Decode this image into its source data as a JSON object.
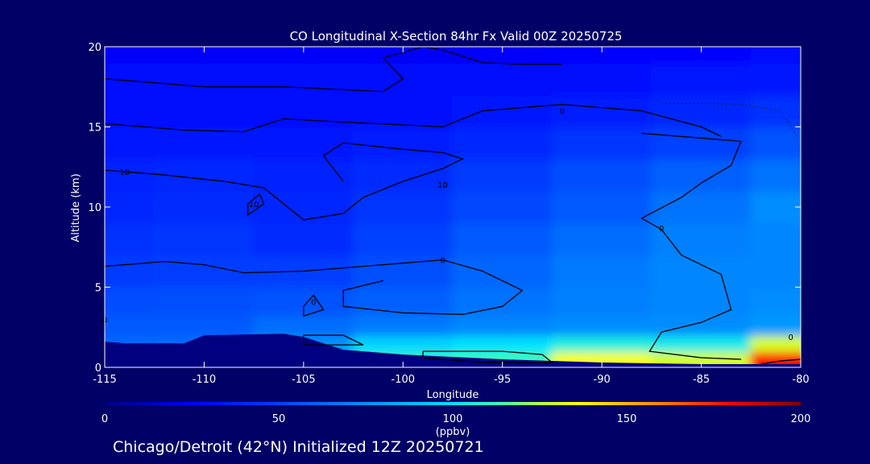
{
  "colors": {
    "background": "#000066",
    "text": "#ffffff",
    "contour": "#000000",
    "terrain": "#000080"
  },
  "colorbar": {
    "min": 0,
    "max": 200,
    "ticks": [
      "0",
      "50",
      "100",
      "150",
      "200"
    ],
    "tick_values": [
      0,
      50,
      100,
      150,
      200
    ],
    "unit_label": "(ppbv)"
  },
  "footer": {
    "caption": "Chicago/Detroit (42°N) Initialized 12Z 20250721"
  },
  "chart_data": {
    "type": "heatmap",
    "title": "CO Longitudinal X-Section 84hr  Fx Valid 00Z 20250725",
    "xlabel": "Longitude",
    "ylabel": "Altitude (km)",
    "xlim": [
      -115,
      -80
    ],
    "ylim": [
      0,
      20
    ],
    "xticks": [
      "-115",
      "-110",
      "-105",
      "-100",
      "-95",
      "-90",
      "-85",
      "-80"
    ],
    "xtick_values": [
      -115,
      -110,
      -105,
      -100,
      -95,
      -90,
      -85,
      -80
    ],
    "yticks": [
      "0",
      "5",
      "10",
      "15",
      "20"
    ],
    "ytick_values": [
      0,
      5,
      10,
      15,
      20
    ],
    "field": {
      "longitudes": [
        -115,
        -110,
        -105,
        -100,
        -95,
        -90,
        -85,
        -80
      ],
      "altitudes": [
        0.5,
        1.5,
        2.5,
        4,
        6,
        8,
        10,
        12,
        14,
        16,
        18,
        20
      ],
      "co_ppbv": [
        [
          70,
          70,
          95,
          110,
          112,
          135,
          130,
          180
        ],
        [
          62,
          63,
          75,
          96,
          100,
          106,
          104,
          130
        ],
        [
          58,
          58,
          64,
          68,
          72,
          74,
          74,
          78
        ],
        [
          54,
          55,
          56,
          60,
          66,
          70,
          72,
          74
        ],
        [
          48,
          49,
          49,
          55,
          62,
          68,
          72,
          72
        ],
        [
          44,
          46,
          42,
          50,
          58,
          64,
          70,
          72
        ],
        [
          40,
          42,
          40,
          46,
          52,
          58,
          66,
          74
        ],
        [
          38,
          40,
          38,
          42,
          48,
          54,
          60,
          66
        ],
        [
          34,
          34,
          32,
          36,
          40,
          46,
          50,
          56
        ],
        [
          30,
          30,
          30,
          30,
          32,
          36,
          40,
          44
        ],
        [
          28,
          28,
          28,
          28,
          28,
          30,
          32,
          34
        ],
        [
          24,
          24,
          24,
          24,
          24,
          26,
          26,
          28
        ]
      ]
    },
    "terrain_km": {
      "longitudes": [
        -115,
        -114,
        -111,
        -110,
        -106,
        -105,
        -103,
        -100,
        -95,
        -90,
        -85,
        -80
      ],
      "heights": [
        1.6,
        1.5,
        1.5,
        2.0,
        2.1,
        1.9,
        1.1,
        0.8,
        0.5,
        0.3,
        0.2,
        0.2
      ]
    },
    "contour_labels": [
      {
        "text": "0",
        "lon": -92.0,
        "alt": 16.0
      },
      {
        "text": "10",
        "lon": -114.0,
        "alt": 12.2
      },
      {
        "text": "10",
        "lon": -107.5,
        "alt": 10.2
      },
      {
        "text": "10",
        "lon": -98.0,
        "alt": 11.4
      },
      {
        "text": "0",
        "lon": -98.0,
        "alt": 6.7
      },
      {
        "text": "0",
        "lon": -104.5,
        "alt": 4.1
      },
      {
        "text": "0",
        "lon": -115.0,
        "alt": 3.0
      },
      {
        "text": "0",
        "lon": -87.0,
        "alt": 8.7
      },
      {
        "text": "0",
        "lon": -80.5,
        "alt": 1.9
      }
    ],
    "contours": [
      [
        [
          -115,
          18
        ],
        [
          -110,
          17.5
        ],
        [
          -106,
          17.5
        ],
        [
          -101,
          17.2
        ],
        [
          -100,
          18
        ],
        [
          -101,
          19.3
        ],
        [
          -99,
          20
        ],
        [
          -98,
          19.8
        ],
        [
          -96,
          19.0
        ],
        [
          -94,
          18.9
        ],
        [
          -92,
          18.9
        ]
      ],
      [
        [
          -115,
          15.2
        ],
        [
          -111,
          14.8
        ],
        [
          -108,
          14.7
        ],
        [
          -106,
          15.5
        ],
        [
          -103,
          15.3
        ],
        [
          -98,
          15.0
        ],
        [
          -96,
          16.0
        ],
        [
          -92,
          16.4
        ],
        [
          -88,
          16.0
        ],
        [
          -85,
          15.0
        ],
        [
          -84,
          14.4
        ]
      ],
      [
        [
          -115,
          12.3
        ],
        [
          -112,
          12.0
        ],
        [
          -109,
          11.6
        ],
        [
          -107,
          11.2
        ],
        [
          -106,
          10.2
        ],
        [
          -105,
          9.2
        ],
        [
          -103,
          9.6
        ],
        [
          -102,
          10.6
        ],
        [
          -100,
          11.6
        ],
        [
          -98,
          12.4
        ],
        [
          -97,
          13.0
        ],
        [
          -98,
          13.4
        ],
        [
          -100,
          13.6
        ],
        [
          -103,
          14.0
        ],
        [
          -104,
          13.2
        ],
        [
          -103,
          11.6
        ]
      ],
      [
        [
          -107.8,
          10.2
        ],
        [
          -107.2,
          10.8
        ],
        [
          -107.0,
          10.2
        ],
        [
          -107.8,
          9.5
        ],
        [
          -107.8,
          10.2
        ]
      ],
      [
        [
          -115,
          6.3
        ],
        [
          -112,
          6.6
        ],
        [
          -110,
          6.4
        ],
        [
          -108,
          5.9
        ],
        [
          -105,
          6.0
        ],
        [
          -101,
          6.4
        ],
        [
          -98,
          6.7
        ],
        [
          -96,
          6.0
        ],
        [
          -94,
          4.8
        ],
        [
          -95,
          3.8
        ],
        [
          -97,
          3.3
        ],
        [
          -100,
          3.4
        ],
        [
          -103,
          3.8
        ],
        [
          -103,
          4.8
        ],
        [
          -101,
          5.4
        ]
      ],
      [
        [
          -105,
          3.8
        ],
        [
          -104.5,
          4.5
        ],
        [
          -104,
          3.6
        ],
        [
          -105,
          3.2
        ],
        [
          -105,
          3.8
        ]
      ],
      [
        [
          -105,
          2.0
        ],
        [
          -103,
          2.0
        ],
        [
          -102,
          1.4
        ],
        [
          -105,
          1.4
        ],
        [
          -105,
          2.0
        ]
      ],
      [
        [
          -99,
          1.0
        ],
        [
          -95,
          1.0
        ],
        [
          -93,
          0.8
        ],
        [
          -92.5,
          0.3
        ],
        [
          -96,
          0.3
        ],
        [
          -99,
          0.6
        ],
        [
          -99,
          1.0
        ]
      ],
      [
        [
          -80,
          0.5
        ],
        [
          -81,
          0.4
        ],
        [
          -82,
          0.2
        ]
      ],
      [
        [
          -88,
          14.6
        ],
        [
          -83,
          14.1
        ],
        [
          -83.5,
          12.6
        ],
        [
          -85,
          11.5
        ],
        [
          -86,
          10.6
        ],
        [
          -88,
          9.3
        ],
        [
          -87,
          8.6
        ],
        [
          -86,
          7.0
        ],
        [
          -84,
          5.8
        ],
        [
          -83.5,
          3.6
        ],
        [
          -85,
          2.8
        ],
        [
          -87,
          2.2
        ],
        [
          -87.6,
          1.0
        ],
        [
          -85,
          0.6
        ],
        [
          -83,
          0.5
        ]
      ],
      [
        [
          -115,
          3.0
        ],
        [
          -115,
          2.3
        ]
      ]
    ]
  }
}
